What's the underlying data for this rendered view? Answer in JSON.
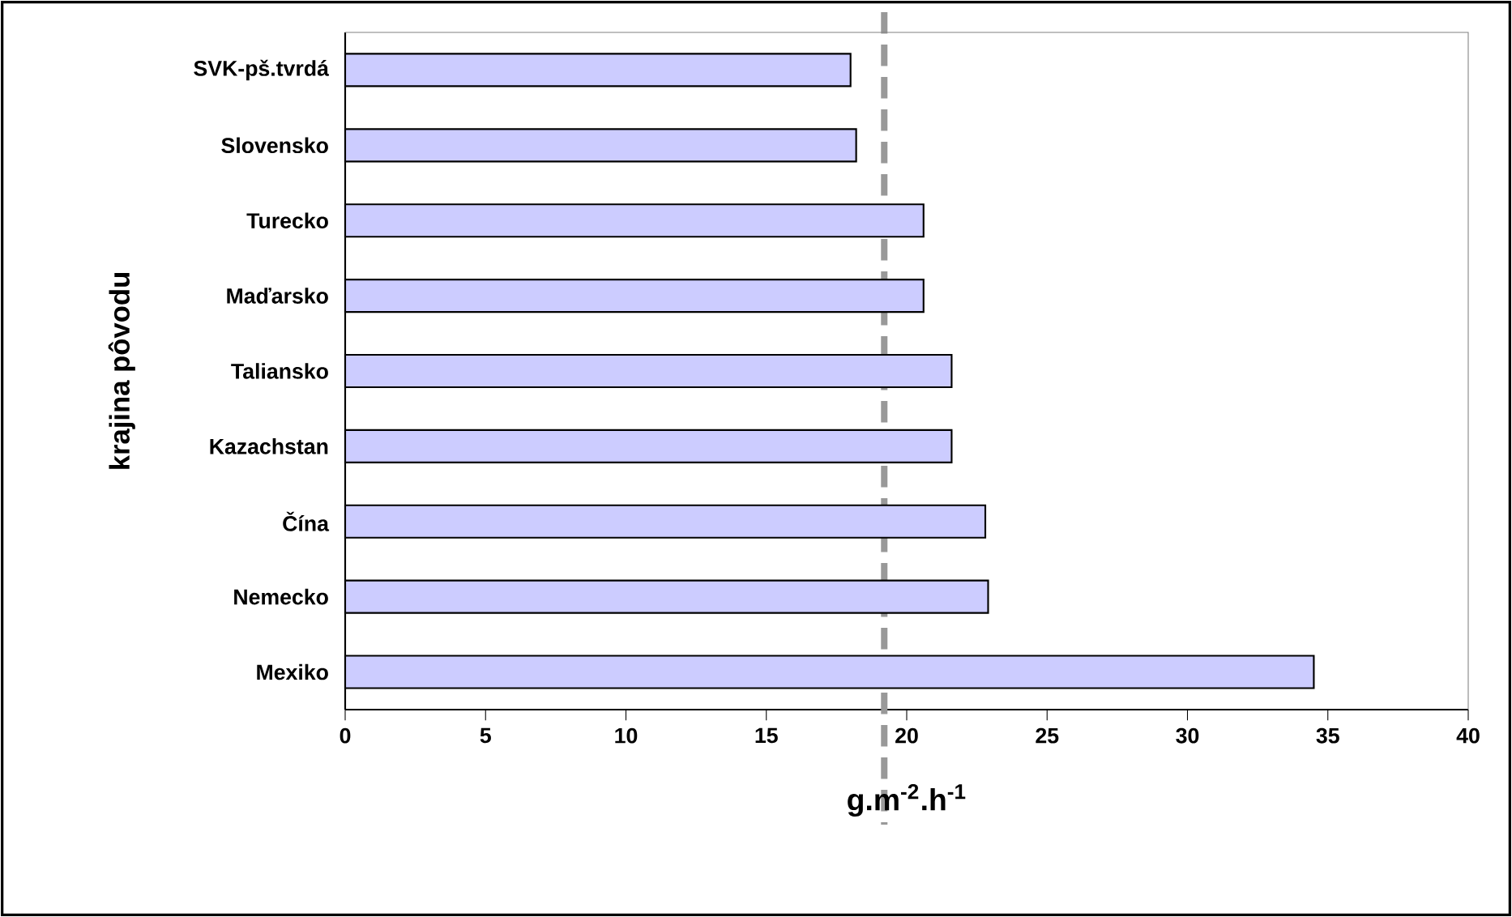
{
  "chart_data": {
    "type": "bar",
    "orientation": "horizontal",
    "ylabel": "krajina pôvodu",
    "xlabel": "g.m$^{-2}$.h$^{-1}$",
    "categories": [
      "SVK-pš.tvrdá",
      "Slovensko",
      "Turecko",
      "Maďarsko",
      "Taliansko",
      "Kazachstan",
      "Čína",
      "Nemecko",
      "Mexiko"
    ],
    "values": [
      18.0,
      18.2,
      20.6,
      20.6,
      21.6,
      21.6,
      22.8,
      22.9,
      34.5
    ],
    "color": "#ccccff",
    "xlim": [
      0,
      40
    ],
    "xticks": [
      0,
      5,
      10,
      15,
      20,
      25,
      30,
      35,
      40
    ],
    "ref_lines": [
      {
        "axis": "x",
        "value": 19.2,
        "color": "#999999",
        "line_style": "dashed"
      }
    ]
  }
}
